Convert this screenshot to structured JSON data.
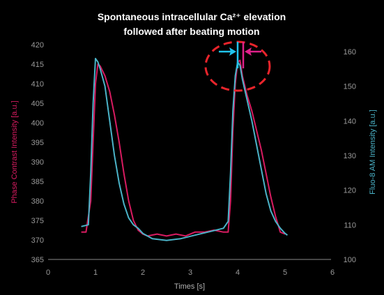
{
  "chart_data": {
    "type": "line",
    "title": "Spontaneous intracellular Ca²⁺ elevation",
    "subtitle": "followed after beating motion",
    "xlabel": "Times [s]",
    "ylabel_left": "Phase Contrast Intensity [a.u.]",
    "ylabel_right": "Fluo-8 AM Intensity [a.u.]",
    "xlim": [
      0,
      6
    ],
    "ylim_left": [
      365,
      420
    ],
    "ylim_right": [
      100,
      162
    ],
    "x_ticks": [
      "0",
      "1",
      "2",
      "3",
      "4",
      "5",
      "6"
    ],
    "y_left_ticks": [
      "365",
      "370",
      "375",
      "380",
      "385",
      "390",
      "395",
      "400",
      "405",
      "410",
      "415",
      "420"
    ],
    "y_right_ticks": [
      "100",
      "110",
      "120",
      "130",
      "140",
      "150",
      "160"
    ],
    "grid": false,
    "colors": {
      "phase": "#d81b60",
      "fluo": "#4bb3c8",
      "circle": "#e8242b",
      "arrow_left": "#20c4ee",
      "arrow_right": "#e0208a",
      "tick_text": "#9a9a9a",
      "axis": "#8a8a8a"
    },
    "series": [
      {
        "key": "phase",
        "axis": "left",
        "x": [
          0.7,
          0.8,
          0.9,
          0.95,
          1.0,
          1.05,
          1.1,
          1.2,
          1.3,
          1.4,
          1.5,
          1.6,
          1.7,
          1.8,
          1.9,
          2.0,
          2.1,
          2.3,
          2.5,
          2.7,
          2.9,
          3.1,
          3.3,
          3.5,
          3.7,
          3.8,
          3.85,
          3.9,
          3.95,
          4.0,
          4.05,
          4.1,
          4.2,
          4.3,
          4.4,
          4.5,
          4.6,
          4.7,
          4.8,
          4.9,
          5.0
        ],
        "y": [
          372,
          372,
          380,
          395,
          410,
          415,
          414.5,
          412,
          408,
          402,
          395,
          387,
          380,
          375,
          372.5,
          371.5,
          371,
          371.5,
          371,
          371.5,
          371,
          372,
          372,
          372.5,
          372,
          372,
          380,
          398,
          410,
          415.5,
          416,
          412,
          407,
          403,
          398,
          393,
          387,
          381,
          376,
          372,
          371.5
        ]
      },
      {
        "key": "fluo",
        "axis": "right",
        "x": [
          0.7,
          0.85,
          0.9,
          0.95,
          1.0,
          1.05,
          1.1,
          1.2,
          1.3,
          1.4,
          1.5,
          1.6,
          1.7,
          1.8,
          1.9,
          2.0,
          2.2,
          2.5,
          2.8,
          3.1,
          3.4,
          3.7,
          3.8,
          3.85,
          3.9,
          3.95,
          4.0,
          4.05,
          4.1,
          4.2,
          4.3,
          4.4,
          4.5,
          4.6,
          4.7,
          4.8,
          4.9,
          5.0,
          5.05
        ],
        "y": [
          109.5,
          110,
          125,
          145,
          158,
          157,
          155,
          150,
          140,
          130,
          122,
          116,
          112,
          110,
          109,
          107.5,
          106,
          105.5,
          106,
          107,
          108,
          109,
          111,
          125,
          143,
          153,
          157,
          156,
          152,
          146,
          140,
          133,
          126,
          119,
          114,
          111,
          109,
          107.5,
          107
        ]
      }
    ]
  }
}
